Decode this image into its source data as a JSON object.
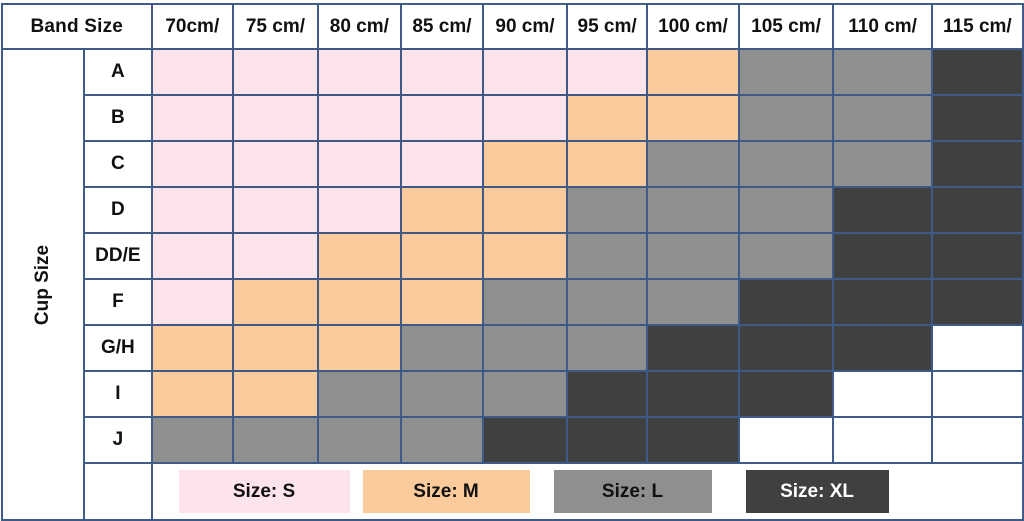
{
  "corner_label": "Band Size",
  "cup_axis_label": "Cup Size",
  "band_sizes": [
    "70cm/",
    "75 cm/",
    "80 cm/",
    "85 cm/",
    "90 cm/",
    "95 cm/",
    "100 cm/",
    "105 cm/",
    "110 cm/",
    "115 cm/"
  ],
  "rows": [
    {
      "cup": "A",
      "sizes": [
        "S",
        "S",
        "S",
        "S",
        "S",
        "S",
        "M",
        "L",
        "L",
        "XL"
      ]
    },
    {
      "cup": "B",
      "sizes": [
        "S",
        "S",
        "S",
        "S",
        "S",
        "M",
        "M",
        "L",
        "L",
        "XL"
      ]
    },
    {
      "cup": "C",
      "sizes": [
        "S",
        "S",
        "S",
        "S",
        "M",
        "M",
        "L",
        "L",
        "L",
        "XL"
      ]
    },
    {
      "cup": "D",
      "sizes": [
        "S",
        "S",
        "S",
        "M",
        "M",
        "L",
        "L",
        "L",
        "XL",
        "XL"
      ]
    },
    {
      "cup": "DD/E",
      "sizes": [
        "S",
        "S",
        "M",
        "M",
        "M",
        "L",
        "L",
        "L",
        "XL",
        "XL"
      ]
    },
    {
      "cup": "F",
      "sizes": [
        "S",
        "M",
        "M",
        "M",
        "L",
        "L",
        "L",
        "XL",
        "XL",
        "XL"
      ]
    },
    {
      "cup": "G/H",
      "sizes": [
        "M",
        "M",
        "M",
        "L",
        "L",
        "L",
        "XL",
        "XL",
        "XL",
        ""
      ]
    },
    {
      "cup": "I",
      "sizes": [
        "M",
        "M",
        "L",
        "L",
        "L",
        "XL",
        "XL",
        "XL",
        "",
        ""
      ]
    },
    {
      "cup": "J",
      "sizes": [
        "L",
        "L",
        "L",
        "L",
        "XL",
        "XL",
        "XL",
        "",
        "",
        ""
      ]
    }
  ],
  "legend": [
    {
      "key": "S",
      "label": "Size: S"
    },
    {
      "key": "M",
      "label": "Size: M"
    },
    {
      "key": "L",
      "label": "Size: L"
    },
    {
      "key": "XL",
      "label": "Size: XL"
    }
  ],
  "colors": {
    "S": "#fde4ea",
    "M": "#fbcb9c",
    "L": "#8f8f8f",
    "XL": "#404040",
    "border": "#3f5a86"
  }
}
